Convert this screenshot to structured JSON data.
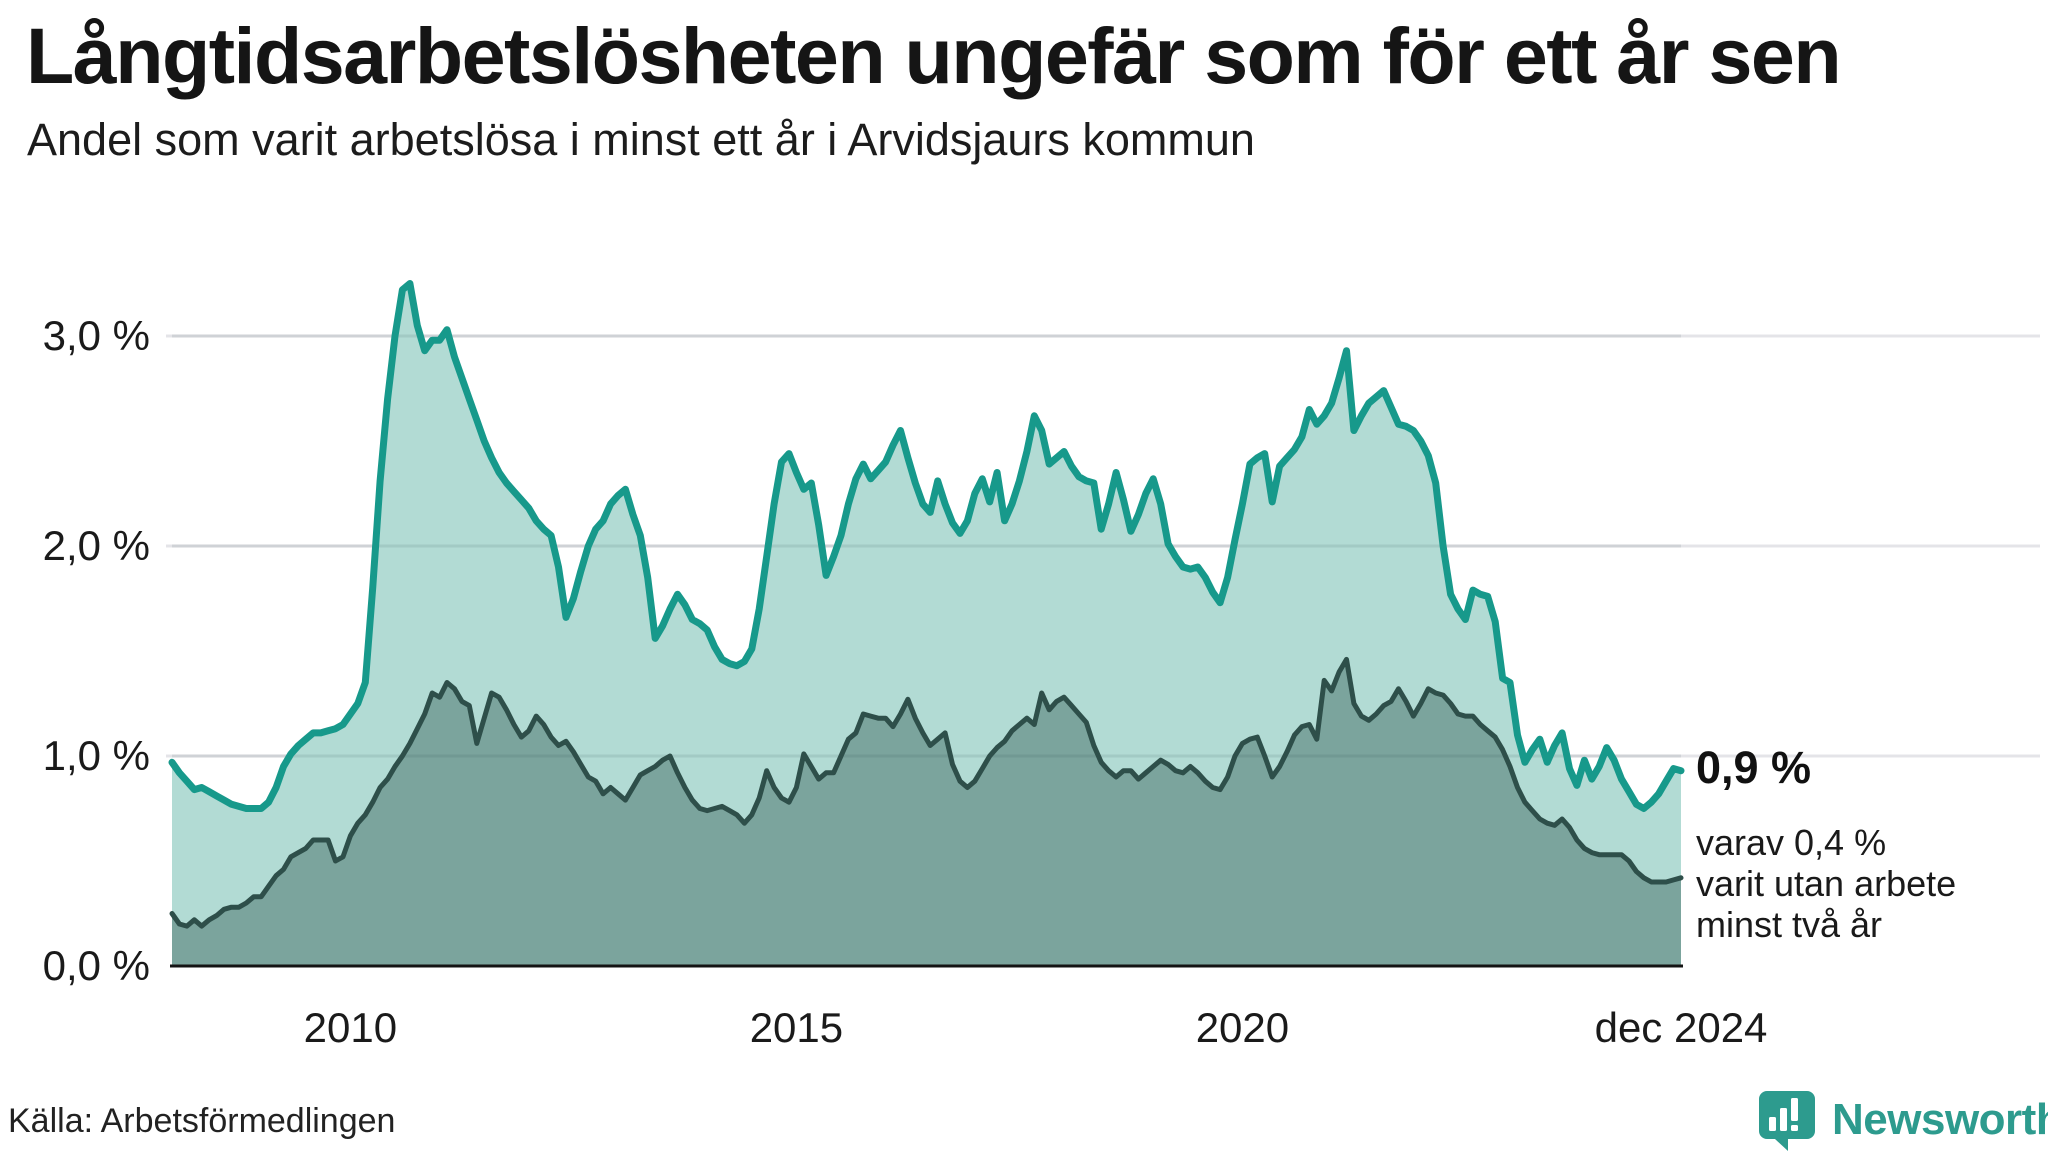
{
  "header": {
    "title": "Långtidsarbetslösheten ungefär som för ett år sen",
    "subtitle": "Andel som varit arbetslösa i minst ett år i Arvidsjaurs kommun"
  },
  "chart_data": {
    "type": "area",
    "title": "Långtidsarbetslösheten ungefär som för ett år sen",
    "subtitle": "Andel som varit arbetslösa i minst ett år i Arvidsjaurs kommun",
    "unit": "%",
    "frequency": "monthly",
    "x_start": "2008-01",
    "x_end": "2024-12",
    "ylim": [
      0,
      3.5
    ],
    "grid": true,
    "legend_position": "none",
    "colors": {
      "long_term_line": "#17998b",
      "long_term_fill": "#b2dbd4",
      "very_long_term_line": "#2e4f4a",
      "very_long_term_fill": "#7ba49d",
      "gridline": "#e4e4e8",
      "axis": "#141414",
      "brand_teal": "#2d9b8e"
    },
    "yticks": [
      {
        "value": 3,
        "label": "3,0 %"
      },
      {
        "value": 2,
        "label": "2,0 %"
      },
      {
        "value": 1,
        "label": "1,0 %"
      },
      {
        "value": 0,
        "label": "0,0 %"
      }
    ],
    "xticks": [
      {
        "month_index": 24,
        "label": "2010"
      },
      {
        "month_index": 84,
        "label": "2015"
      },
      {
        "month_index": 144,
        "label": "2020"
      },
      {
        "month_index": 203,
        "label": "dec 2024"
      }
    ],
    "series": [
      {
        "name": "Andel arbetslösa minst ett år",
        "values": [
          0.97,
          0.92,
          0.88,
          0.84,
          0.85,
          0.83,
          0.81,
          0.79,
          0.77,
          0.76,
          0.75,
          0.75,
          0.75,
          0.78,
          0.85,
          0.95,
          1.01,
          1.05,
          1.08,
          1.11,
          1.11,
          1.12,
          1.13,
          1.15,
          1.2,
          1.25,
          1.35,
          1.8,
          2.31,
          2.7,
          3.0,
          3.22,
          3.25,
          3.05,
          2.93,
          2.98,
          2.98,
          3.03,
          2.9,
          2.8,
          2.7,
          2.6,
          2.5,
          2.42,
          2.35,
          2.3,
          2.26,
          2.22,
          2.18,
          2.12,
          2.08,
          2.05,
          1.9,
          1.66,
          1.75,
          1.88,
          2.0,
          2.08,
          2.12,
          2.2,
          2.24,
          2.27,
          2.15,
          2.05,
          1.85,
          1.56,
          1.62,
          1.7,
          1.77,
          1.72,
          1.65,
          1.63,
          1.6,
          1.52,
          1.46,
          1.44,
          1.43,
          1.45,
          1.51,
          1.7,
          1.95,
          2.2,
          2.4,
          2.44,
          2.35,
          2.27,
          2.3,
          2.1,
          1.86,
          1.95,
          2.05,
          2.2,
          2.32,
          2.39,
          2.32,
          2.36,
          2.4,
          2.48,
          2.55,
          2.42,
          2.3,
          2.2,
          2.16,
          2.31,
          2.2,
          2.11,
          2.06,
          2.12,
          2.25,
          2.32,
          2.21,
          2.35,
          2.12,
          2.2,
          2.31,
          2.45,
          2.62,
          2.55,
          2.39,
          2.42,
          2.45,
          2.38,
          2.33,
          2.31,
          2.3,
          2.08,
          2.2,
          2.35,
          2.22,
          2.07,
          2.15,
          2.25,
          2.32,
          2.2,
          2.01,
          1.95,
          1.9,
          1.89,
          1.9,
          1.85,
          1.78,
          1.73,
          1.85,
          2.03,
          2.2,
          2.39,
          2.42,
          2.44,
          2.21,
          2.38,
          2.42,
          2.46,
          2.52,
          2.65,
          2.58,
          2.62,
          2.68,
          2.8,
          2.93,
          2.55,
          2.62,
          2.68,
          2.71,
          2.74,
          2.66,
          2.58,
          2.57,
          2.55,
          2.5,
          2.43,
          2.3,
          2.0,
          1.77,
          1.7,
          1.65,
          1.79,
          1.77,
          1.76,
          1.64,
          1.37,
          1.35,
          1.1,
          0.97,
          1.03,
          1.08,
          0.97,
          1.05,
          1.11,
          0.94,
          0.86,
          0.98,
          0.89,
          0.95,
          1.04,
          0.98,
          0.89,
          0.83,
          0.77,
          0.75,
          0.78,
          0.82,
          0.88,
          0.94,
          0.93
        ]
      },
      {
        "name": "Varav utan arbete minst två år",
        "values": [
          0.25,
          0.2,
          0.19,
          0.22,
          0.19,
          0.22,
          0.24,
          0.27,
          0.28,
          0.28,
          0.3,
          0.33,
          0.33,
          0.38,
          0.43,
          0.46,
          0.52,
          0.54,
          0.56,
          0.6,
          0.6,
          0.6,
          0.5,
          0.52,
          0.62,
          0.68,
          0.72,
          0.78,
          0.85,
          0.89,
          0.95,
          1.0,
          1.06,
          1.13,
          1.2,
          1.3,
          1.28,
          1.35,
          1.32,
          1.26,
          1.24,
          1.06,
          1.18,
          1.3,
          1.28,
          1.22,
          1.15,
          1.09,
          1.12,
          1.19,
          1.15,
          1.09,
          1.05,
          1.07,
          1.02,
          0.96,
          0.9,
          0.88,
          0.82,
          0.85,
          0.82,
          0.79,
          0.85,
          0.91,
          0.93,
          0.95,
          0.98,
          1.0,
          0.92,
          0.85,
          0.79,
          0.75,
          0.74,
          0.75,
          0.76,
          0.74,
          0.72,
          0.68,
          0.72,
          0.8,
          0.93,
          0.85,
          0.8,
          0.78,
          0.85,
          1.01,
          0.95,
          0.89,
          0.92,
          0.92,
          1.0,
          1.08,
          1.11,
          1.2,
          1.19,
          1.18,
          1.18,
          1.14,
          1.2,
          1.27,
          1.18,
          1.11,
          1.05,
          1.08,
          1.11,
          0.96,
          0.88,
          0.85,
          0.88,
          0.94,
          1.0,
          1.04,
          1.07,
          1.12,
          1.15,
          1.18,
          1.15,
          1.3,
          1.22,
          1.26,
          1.28,
          1.24,
          1.2,
          1.16,
          1.05,
          0.97,
          0.93,
          0.9,
          0.93,
          0.93,
          0.89,
          0.92,
          0.95,
          0.98,
          0.96,
          0.93,
          0.92,
          0.95,
          0.92,
          0.88,
          0.85,
          0.84,
          0.9,
          1.0,
          1.06,
          1.08,
          1.09,
          1.0,
          0.9,
          0.95,
          1.02,
          1.1,
          1.14,
          1.15,
          1.08,
          1.36,
          1.31,
          1.4,
          1.46,
          1.25,
          1.19,
          1.17,
          1.2,
          1.24,
          1.26,
          1.32,
          1.26,
          1.19,
          1.25,
          1.32,
          1.3,
          1.29,
          1.25,
          1.2,
          1.19,
          1.19,
          1.15,
          1.12,
          1.09,
          1.03,
          0.95,
          0.85,
          0.78,
          0.74,
          0.7,
          0.68,
          0.67,
          0.7,
          0.66,
          0.6,
          0.56,
          0.54,
          0.53,
          0.53,
          0.53,
          0.53,
          0.5,
          0.45,
          0.42,
          0.4,
          0.4,
          0.4,
          0.41,
          0.42
        ]
      }
    ],
    "annotation": {
      "value_label": "0,9 %",
      "note_lines": [
        "varav 0,4 %",
        "varit utan arbete",
        "minst två år"
      ]
    }
  },
  "footer": {
    "source": "Källa: Arbetsförmedlingen",
    "brand": "Newsworthy"
  }
}
